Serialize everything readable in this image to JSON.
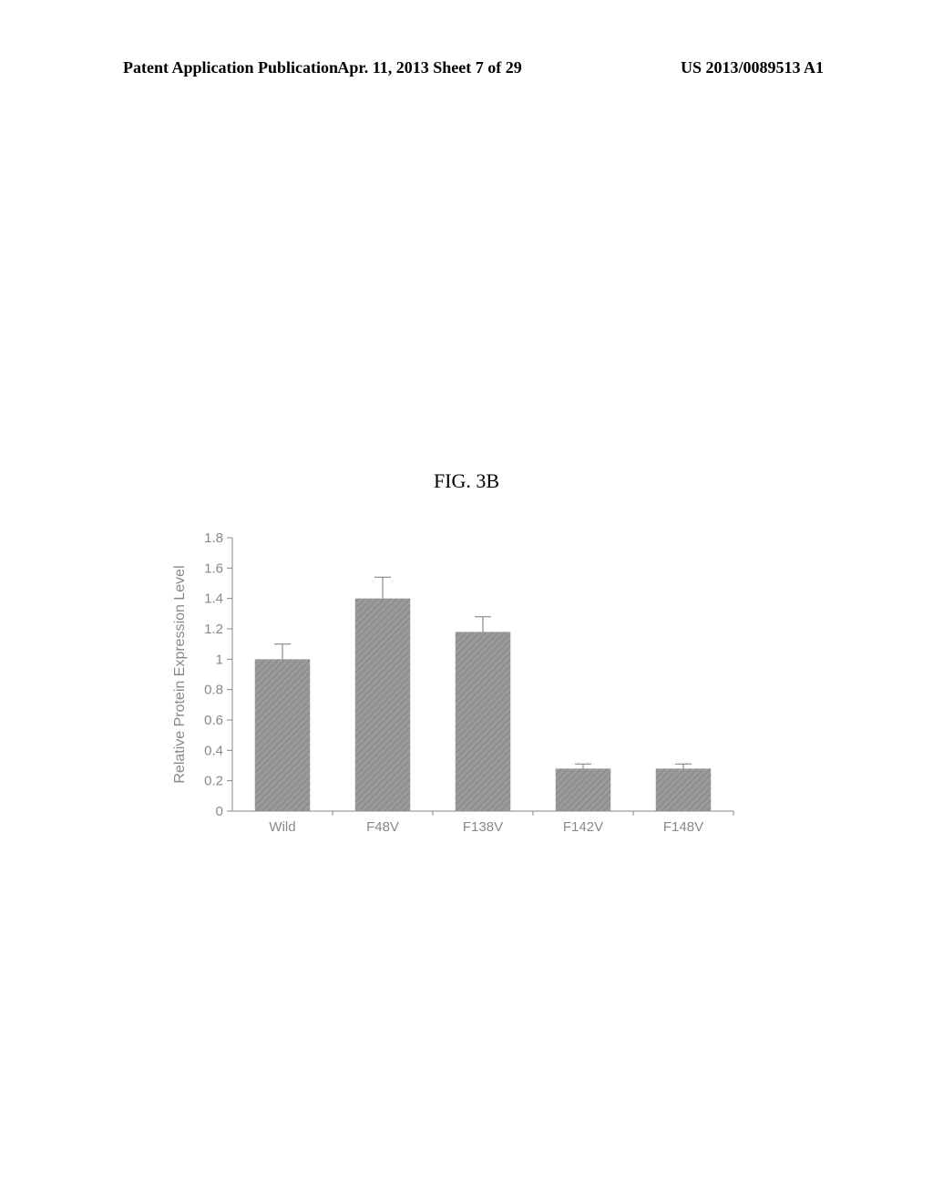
{
  "header": {
    "left": "Patent Application Publication",
    "center": "Apr. 11, 2013  Sheet 7 of 29",
    "right": "US 2013/0089513 A1"
  },
  "figure_label": "FIG. 3B",
  "chart": {
    "type": "bar",
    "ylabel": "Relative Protein Expression Level",
    "label_fontsize": 16,
    "tick_fontsize": 15,
    "ylim": [
      0,
      1.8
    ],
    "ytick_step": 0.2,
    "yticks": [
      "0",
      "0.2",
      "0.4",
      "0.6",
      "0.8",
      "1",
      "1.2",
      "1.4",
      "1.6",
      "1.8"
    ],
    "categories": [
      "Wild",
      "F48V",
      "F138V",
      "F142V",
      "F148V"
    ],
    "values": [
      1.0,
      1.4,
      1.18,
      0.28,
      0.28
    ],
    "errors": [
      0.1,
      0.14,
      0.1,
      0.03,
      0.03
    ],
    "bar_color": "#8e8e8e",
    "bar_pattern": "hatch",
    "background_color": "#ffffff",
    "axis_color": "#888888",
    "text_color": "#888888",
    "bar_width": 0.55
  }
}
